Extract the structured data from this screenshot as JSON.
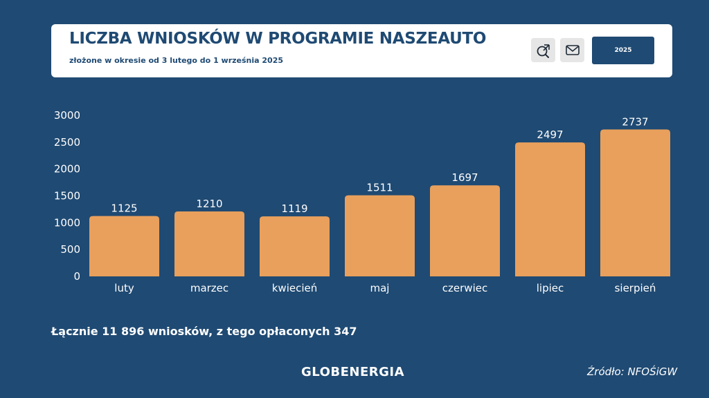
{
  "header": {
    "title": "LICZBA WNIOSKÓW W PROGRAMIE NASZEAUTO",
    "subtitle": "złożone w okresie od 3 lutego do 1 września 2025",
    "buttons": {
      "search_icon": "search-zoom-icon",
      "mail_icon": "mail-icon",
      "year_label": "2025"
    }
  },
  "summary_text": "Łącznie 11 896 wniosków, z tego opłaconych 347",
  "footer": {
    "logo": "GLOBENERGIA",
    "source": "Źródło: NFOŚiGW"
  },
  "colors": {
    "background": "#1f4a73",
    "bar": "#e9a05c",
    "text": "#ffffff"
  },
  "chart_data": {
    "type": "bar",
    "title": "LICZBA WNIOSKÓW W PROGRAMIE NASZEAUTO",
    "subtitle": "złożone w okresie od 3 lutego do 1 września 2025",
    "categories": [
      "luty",
      "marzec",
      "kwiecień",
      "maj",
      "czerwiec",
      "lipiec",
      "sierpień"
    ],
    "values": [
      1125,
      1210,
      1119,
      1511,
      1697,
      2497,
      2737
    ],
    "xlabel": "",
    "ylabel": "",
    "ylim": [
      0,
      3000
    ],
    "yticks": [
      0,
      500,
      1000,
      1500,
      2000,
      2500,
      3000
    ],
    "grid": false,
    "data_labels": true
  }
}
